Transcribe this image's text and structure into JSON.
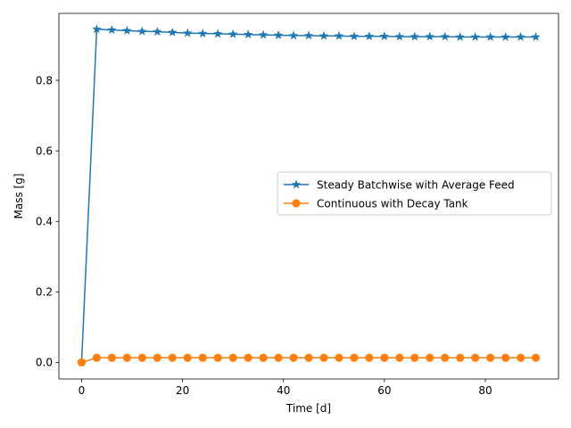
{
  "chart_data": {
    "type": "line",
    "title": "",
    "xlabel": "Time [d]",
    "ylabel": "Mass [g]",
    "xlim": [
      -4.5,
      94.5
    ],
    "ylim": [
      -0.047,
      0.99
    ],
    "xticks": [
      0,
      20,
      40,
      60,
      80
    ],
    "yticks": [
      0.0,
      0.2,
      0.4,
      0.6,
      0.8
    ],
    "xtick_labels": [
      "0",
      "20",
      "40",
      "60",
      "80"
    ],
    "ytick_labels": [
      "0.0",
      "0.2",
      "0.4",
      "0.6",
      "0.8"
    ],
    "grid": false,
    "legend": "center-right",
    "x": [
      0,
      3,
      6,
      9,
      12,
      15,
      18,
      21,
      24,
      27,
      30,
      33,
      36,
      39,
      42,
      45,
      48,
      51,
      54,
      57,
      60,
      63,
      66,
      69,
      72,
      75,
      78,
      81,
      84,
      87,
      90
    ],
    "series": [
      {
        "name": "Steady Batchwise with Average Feed",
        "color": "#1f77b4",
        "marker": "star",
        "values": [
          0.0,
          0.945,
          0.943,
          0.941,
          0.939,
          0.938,
          0.936,
          0.934,
          0.933,
          0.932,
          0.931,
          0.93,
          0.929,
          0.928,
          0.927,
          0.927,
          0.926,
          0.926,
          0.925,
          0.925,
          0.925,
          0.924,
          0.924,
          0.924,
          0.924,
          0.923,
          0.923,
          0.923,
          0.923,
          0.923,
          0.923
        ]
      },
      {
        "name": "Continuous with Decay Tank",
        "color": "#ff7f0e",
        "marker": "circle",
        "values": [
          0.0,
          0.013,
          0.013,
          0.013,
          0.013,
          0.013,
          0.013,
          0.013,
          0.013,
          0.013,
          0.013,
          0.013,
          0.013,
          0.013,
          0.013,
          0.013,
          0.013,
          0.013,
          0.013,
          0.013,
          0.013,
          0.013,
          0.013,
          0.013,
          0.013,
          0.013,
          0.013,
          0.013,
          0.013,
          0.013,
          0.013
        ]
      }
    ]
  }
}
